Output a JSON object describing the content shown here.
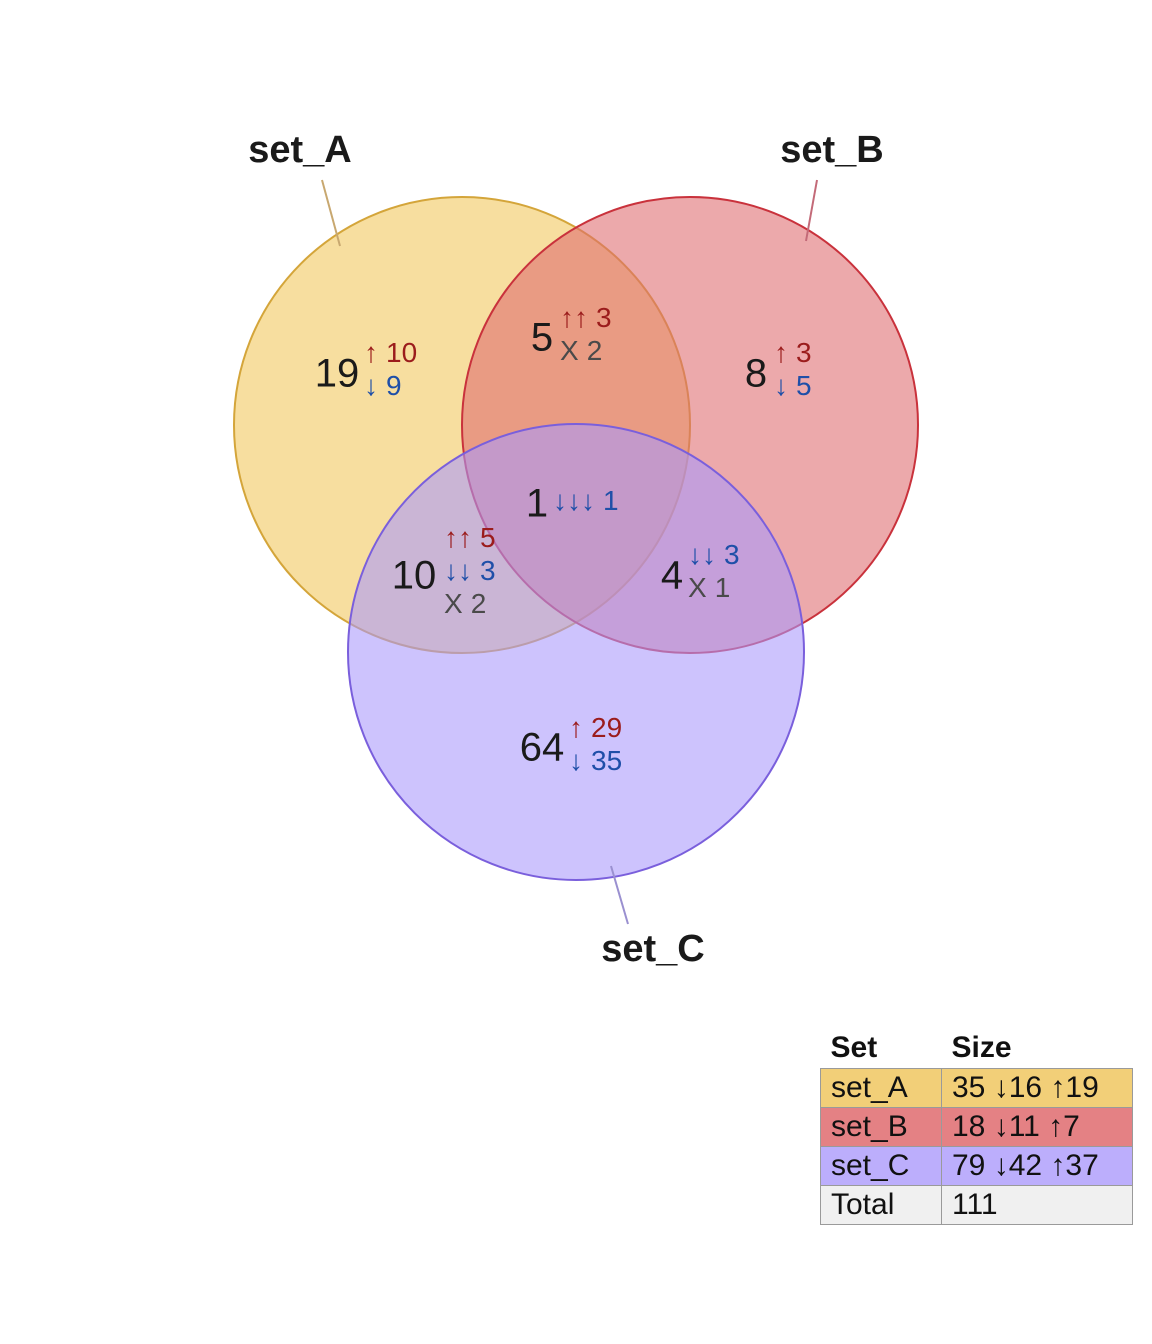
{
  "chart_data": {
    "type": "venn",
    "sets": [
      {
        "key": "A",
        "name": "set_A",
        "fill": "#f2c65a",
        "stroke": "#d4a53a",
        "leader": "#c8a870"
      },
      {
        "key": "B",
        "name": "set_B",
        "fill": "#df6a6e",
        "stroke": "#c9323c",
        "leader": "#c36a78"
      },
      {
        "key": "C",
        "name": "set_C",
        "fill": "#a898fc",
        "stroke": "#7a5fdc",
        "leader": "#9a90d0"
      }
    ],
    "regions": [
      {
        "sets": "A",
        "count": "19",
        "lines": [
          {
            "dir": "up",
            "sym": "↑",
            "val": "10"
          },
          {
            "dir": "down",
            "sym": "↓",
            "val": "9"
          }
        ]
      },
      {
        "sets": "AB",
        "count": "5",
        "lines": [
          {
            "dir": "up",
            "sym": "↑↑",
            "val": "3"
          },
          {
            "dir": "mixed",
            "sym": "X",
            "val": "2"
          }
        ]
      },
      {
        "sets": "B",
        "count": "8",
        "lines": [
          {
            "dir": "up",
            "sym": "↑",
            "val": "3"
          },
          {
            "dir": "down",
            "sym": "↓",
            "val": "5"
          }
        ]
      },
      {
        "sets": "ABC",
        "count": "1",
        "lines": [
          {
            "dir": "down",
            "sym": "↓↓↓",
            "val": "1"
          }
        ]
      },
      {
        "sets": "AC",
        "count": "10",
        "lines": [
          {
            "dir": "up",
            "sym": "↑↑",
            "val": "5"
          },
          {
            "dir": "down",
            "sym": "↓↓",
            "val": "3"
          },
          {
            "dir": "mixed",
            "sym": "X",
            "val": "2"
          }
        ]
      },
      {
        "sets": "BC",
        "count": "4",
        "lines": [
          {
            "dir": "down",
            "sym": "↓↓",
            "val": "3"
          },
          {
            "dir": "mixed",
            "sym": "X",
            "val": "1"
          }
        ]
      },
      {
        "sets": "C",
        "count": "64",
        "lines": [
          {
            "dir": "up",
            "sym": "↑",
            "val": "29"
          },
          {
            "dir": "down",
            "sym": "↓",
            "val": "35"
          }
        ]
      }
    ],
    "colors": {
      "up": "#9b1c1c",
      "down": "#1f4fa8",
      "mixed": "#4a4a4a",
      "total_row": "#f0f0f0"
    }
  },
  "legend_table": {
    "headers": {
      "set": "Set",
      "size": "Size"
    },
    "rows": [
      {
        "set": "set_A",
        "size": "35 ↓16 ↑19",
        "color": "#f2cf78"
      },
      {
        "set": "set_B",
        "size": "18 ↓11 ↑7",
        "color": "#e48184"
      },
      {
        "set": "set_C",
        "size": "79 ↓42 ↑37",
        "color": "#bcaefc"
      },
      {
        "set": "Total",
        "size": "111",
        "color": "#f0f0f0"
      }
    ]
  }
}
